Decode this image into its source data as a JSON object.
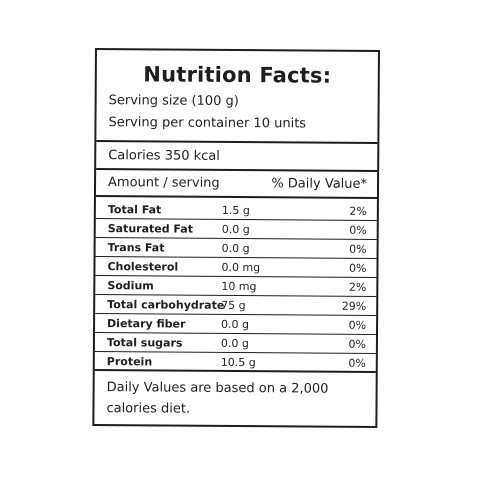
{
  "title": "Nutrition Facts:",
  "serving_size": "Serving size (100 g)",
  "serving_per_container": "Serving per container 10 units",
  "calories": "Calories 350 kcal",
  "header": {
    "amount": "Amount / serving",
    "daily_value": "% Daily Value*"
  },
  "nutrients": [
    {
      "name": "Total Fat",
      "amount": "1.5 g",
      "percent": "2%"
    },
    {
      "name": "Saturated Fat",
      "amount": "0.0 g",
      "percent": "0%"
    },
    {
      "name": "Trans Fat",
      "amount": "0.0 g",
      "percent": "0%"
    },
    {
      "name": "Cholesterol",
      "amount": "0.0 mg",
      "percent": "0%"
    },
    {
      "name": "Sodium",
      "amount": "10 mg",
      "percent": "2%"
    },
    {
      "name": "Total carbohydrate",
      "amount": "75 g",
      "percent": "29%"
    },
    {
      "name": "Dietary fiber",
      "amount": "0.0 g",
      "percent": "0%"
    },
    {
      "name": "Total sugars",
      "amount": "0.0 g",
      "percent": "0%"
    },
    {
      "name": "Protein",
      "amount": "10.5 g",
      "percent": "0%"
    }
  ],
  "footnote": "Daily Values are based on a 2,000 calories diet."
}
